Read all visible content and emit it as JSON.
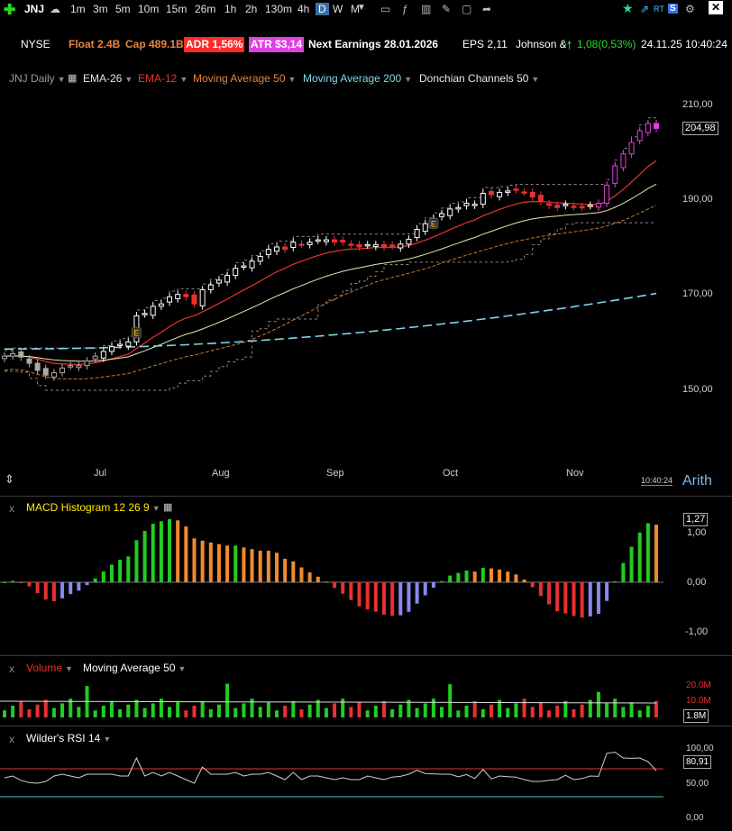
{
  "toolbar": {
    "symbol": "JNJ",
    "timeframes": [
      "1m",
      "3m",
      "5m",
      "10m",
      "15m",
      "26m",
      "1h",
      "2h",
      "130m",
      "4h",
      "D",
      "W",
      "M"
    ],
    "active_timeframe": "D"
  },
  "infobar": {
    "exchange": "NYSE",
    "float": "Float 2.4B",
    "cap": "Cap 489.1B",
    "adr": "ADR  1,56%",
    "atr": "ATR $3,14",
    "earnings": "Next Earnings 28.01.2026",
    "eps": "EPS 2,11",
    "company": "Johnson &",
    "change": "1,08(0,53%)",
    "datetime": "24.11.25 10:40:24"
  },
  "studies": {
    "chart_label": "JNJ Daily",
    "items": [
      {
        "label": "EMA-26",
        "color": "#e8e8e8"
      },
      {
        "label": "EMA-12",
        "color": "#e8352c"
      },
      {
        "label": "Moving Average 50",
        "color": "#e8843c"
      },
      {
        "label": "Moving Average 200",
        "color": "#7fd8e8"
      },
      {
        "label": "Donchian Channels 50",
        "color": "#e8e8e8"
      }
    ]
  },
  "price_axis": {
    "labels": [
      "210,00",
      "190,00",
      "170,00",
      "150,00"
    ],
    "current": "204,98",
    "scale": "Arith"
  },
  "time_axis": {
    "labels": [
      "Jul",
      "Aug",
      "Sep",
      "Oct",
      "Nov"
    ],
    "clock": "10:40:24"
  },
  "macd": {
    "title": "MACD Histogram 12 26 9",
    "labels": [
      "1,00",
      "0,00",
      "-1,00"
    ],
    "current": "1,27"
  },
  "volume": {
    "title": "Volume",
    "ma_title": "Moving Average 50",
    "labels": [
      "20.0M",
      "10.0M"
    ],
    "current": "1.8M"
  },
  "rsi": {
    "title": "Wilder's RSI 14",
    "labels": [
      "100,00",
      "50,00",
      "0,00"
    ],
    "current": "80,91"
  },
  "colors": {
    "up": "#22cc22",
    "down": "#e83030",
    "macd_orange": "#f08a30",
    "macd_blue": "#8888ee",
    "rsi_line": "#d0d0d0",
    "highlight_magenta": "#e040e0",
    "adr_bg": "#ff2a2a",
    "atr_bg": "#e040e0"
  },
  "chart_data": {
    "type": "line",
    "closes": [
      157,
      157.5,
      156.8,
      155.5,
      154,
      153,
      153.5,
      154.5,
      155,
      155,
      156,
      157,
      158,
      159,
      159.5,
      160,
      165.5,
      166,
      167.5,
      168,
      169.5,
      170,
      169.5,
      168,
      171,
      172,
      173,
      174,
      175.5,
      176,
      177,
      178,
      179.5,
      180,
      179.5,
      181,
      180.5,
      181,
      181.5,
      181.5,
      181,
      181,
      180.5,
      180,
      180.5,
      180.5,
      180,
      180.2,
      180.6,
      181.6,
      183.7,
      184.9,
      186,
      187,
      188,
      188.3,
      189.2,
      189,
      191.3,
      191,
      191.5,
      191.8,
      192,
      191.5,
      190.5,
      189.5,
      188.8,
      188.3,
      189,
      188.5,
      188.3,
      188.8,
      189.2,
      193,
      197.1,
      199.6,
      202,
      204.5,
      206,
      204.98
    ]
  }
}
